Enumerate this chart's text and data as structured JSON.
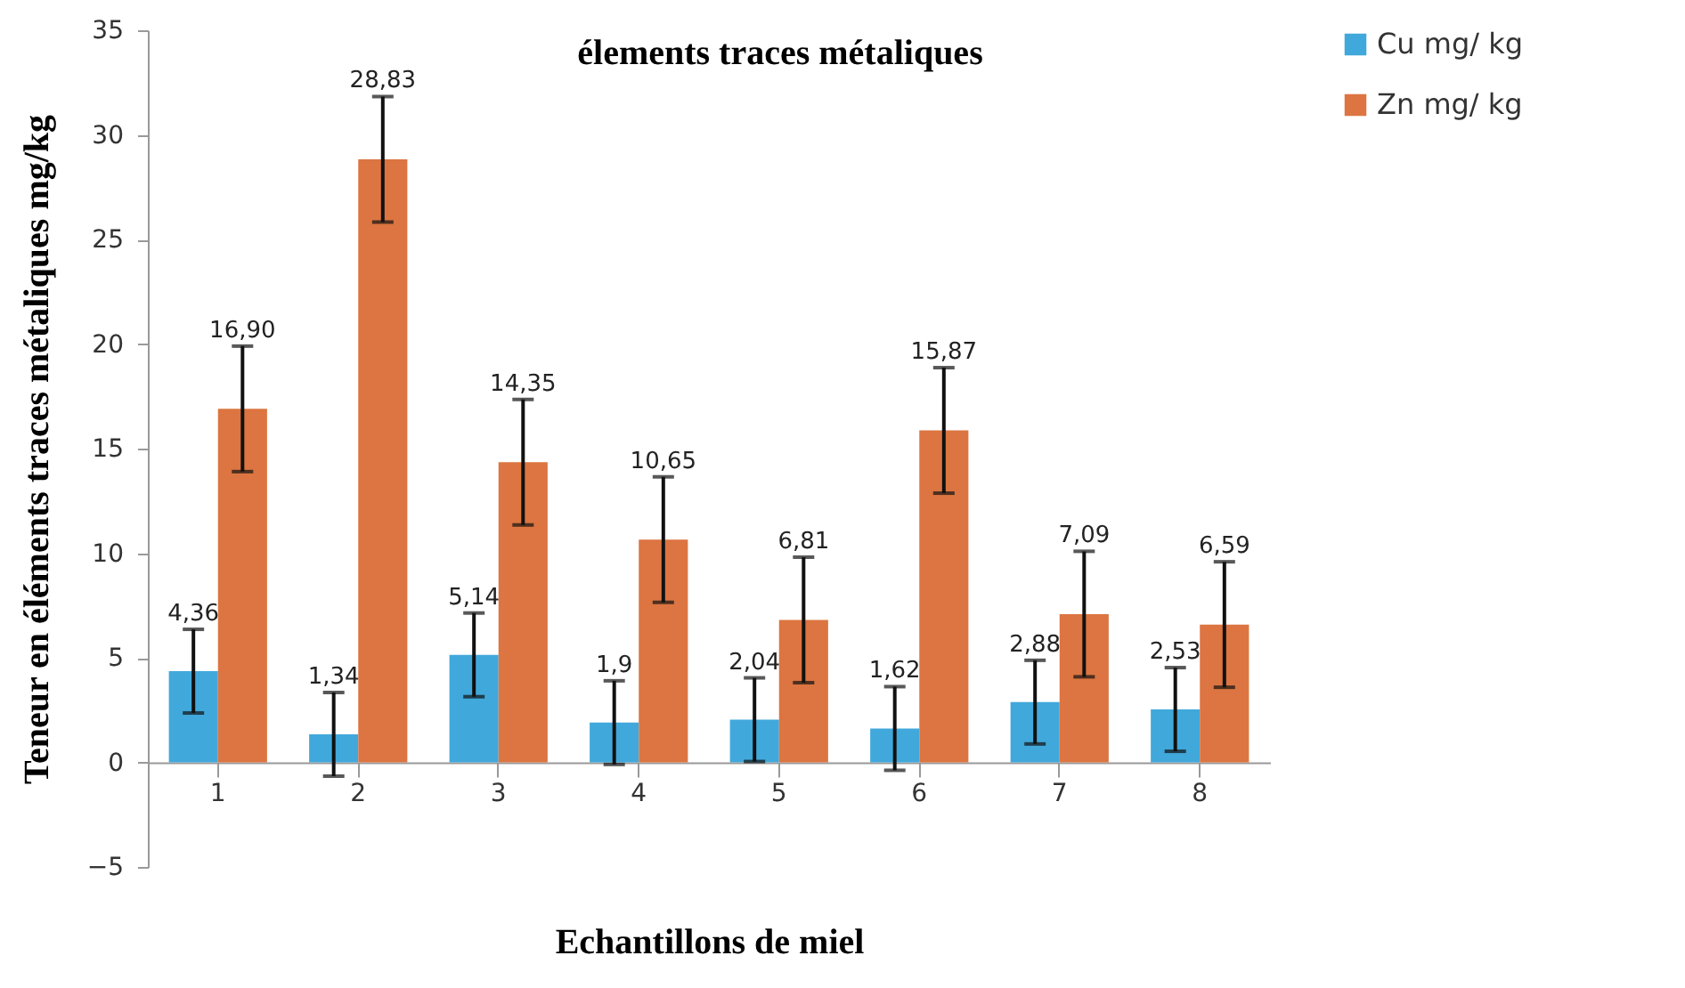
{
  "chart_data": {
    "type": "bar",
    "title": "élements traces métaliques",
    "xlabel": "Echantillons de miel",
    "ylabel": "Teneur en éléments traces métaliques mg/kg",
    "categories": [
      "1",
      "2",
      "3",
      "4",
      "5",
      "6",
      "7",
      "8"
    ],
    "series": [
      {
        "name": "Cu mg/ kg",
        "color": "#41a8db",
        "values": [
          4.36,
          1.34,
          5.14,
          1.9,
          2.04,
          1.62,
          2.88,
          2.53
        ],
        "errors": [
          2,
          2,
          2,
          2,
          2,
          2,
          2,
          2
        ],
        "value_labels": [
          "4,36",
          "1,34",
          "5,14",
          "1,9",
          "2,04",
          "1,62",
          "2,88",
          "2,53"
        ]
      },
      {
        "name": "Zn  mg/ kg",
        "color": "#dc7541",
        "values": [
          16.9,
          28.83,
          14.35,
          10.65,
          6.81,
          15.87,
          7.09,
          6.59
        ],
        "errors": [
          3,
          3,
          3,
          3,
          3,
          3,
          3,
          3
        ],
        "value_labels": [
          "16,90",
          "28,83",
          "14,35",
          "10,65",
          "6,81",
          "15,87",
          "7,09",
          "6,59"
        ]
      }
    ],
    "ylim": [
      -5,
      35
    ],
    "yticks": [
      -5,
      0,
      5,
      10,
      15,
      20,
      25,
      30,
      35
    ],
    "grid": false,
    "legend": "right"
  }
}
